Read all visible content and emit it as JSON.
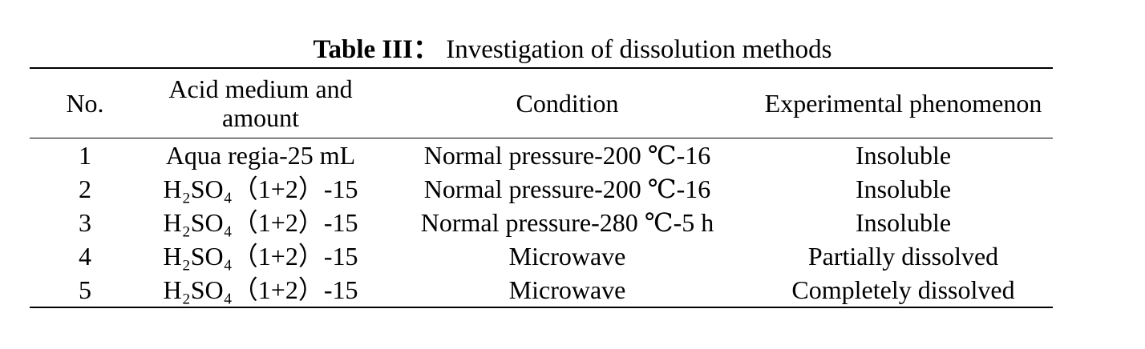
{
  "title": {
    "label": "Table III：",
    "text": "Investigation of dissolution methods"
  },
  "table": {
    "header": [
      "No.",
      "Acid medium and amount",
      "Condition",
      "Experimental phenomenon"
    ],
    "rows": [
      [
        "1",
        "Aqua regia-25 mL",
        "Normal pressure-200 ℃-16",
        "Insoluble"
      ],
      [
        "2",
        "H₂SO₄（1+2）-15",
        "Normal pressure-200 ℃-16",
        "Insoluble"
      ],
      [
        "3",
        "H₂SO₄（1+2）-15",
        "Normal pressure-280 ℃-5 h",
        "Insoluble"
      ],
      [
        "4",
        "H₂SO₄（1+2）-15",
        "Microwave",
        "Partially dissolved"
      ],
      [
        "5",
        "H₂SO₄（1+2）-15",
        "Microwave",
        "Completely dissolved"
      ]
    ]
  }
}
